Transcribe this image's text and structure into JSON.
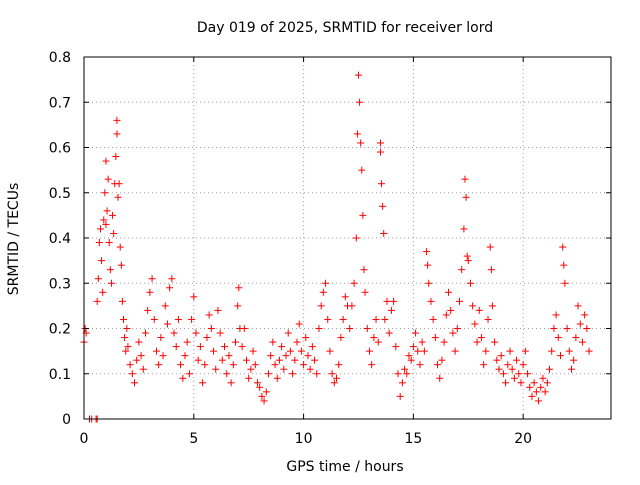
{
  "chart_data": {
    "type": "scatter",
    "title": "Day 019 of 2025, SRMTID for receiver lord",
    "xlabel": "GPS time / hours",
    "ylabel": "SRMTID / TECUs",
    "xlim": [
      0,
      24
    ],
    "ylim": [
      0,
      0.8
    ],
    "xticks": [
      0,
      5,
      10,
      15,
      20
    ],
    "xtick_labels": [
      "0",
      "5",
      "10",
      "15",
      "20"
    ],
    "yticks": [
      0,
      0.1,
      0.2,
      0.3,
      0.4,
      0.5,
      0.6,
      0.7,
      0.8
    ],
    "ytick_labels": [
      "0",
      "0.1",
      "0.2",
      "0.3",
      "0.4",
      "0.5",
      "0.6",
      "0.7",
      "0.8"
    ],
    "grid": true,
    "marker": "+",
    "color": "#ff0000",
    "series": [
      {
        "name": "SRMTID",
        "points": [
          [
            0.0,
            0.17
          ],
          [
            0.05,
            0.2
          ],
          [
            0.1,
            0.19
          ],
          [
            0.25,
            0.0
          ],
          [
            0.35,
            0.0
          ],
          [
            0.55,
            0.0
          ],
          [
            0.6,
            0.0
          ],
          [
            0.6,
            0.26
          ],
          [
            0.65,
            0.31
          ],
          [
            0.7,
            0.39
          ],
          [
            0.75,
            0.42
          ],
          [
            0.8,
            0.35
          ],
          [
            0.85,
            0.28
          ],
          [
            0.9,
            0.44
          ],
          [
            0.95,
            0.5
          ],
          [
            1.0,
            0.57
          ],
          [
            1.0,
            0.43
          ],
          [
            1.05,
            0.46
          ],
          [
            1.1,
            0.53
          ],
          [
            1.15,
            0.39
          ],
          [
            1.2,
            0.33
          ],
          [
            1.25,
            0.3
          ],
          [
            1.3,
            0.45
          ],
          [
            1.35,
            0.41
          ],
          [
            1.4,
            0.52
          ],
          [
            1.45,
            0.58
          ],
          [
            1.5,
            0.66
          ],
          [
            1.5,
            0.63
          ],
          [
            1.55,
            0.49
          ],
          [
            1.6,
            0.52
          ],
          [
            1.65,
            0.38
          ],
          [
            1.7,
            0.34
          ],
          [
            1.75,
            0.26
          ],
          [
            1.8,
            0.22
          ],
          [
            1.85,
            0.18
          ],
          [
            1.9,
            0.15
          ],
          [
            1.95,
            0.2
          ],
          [
            2.0,
            0.16
          ],
          [
            2.1,
            0.12
          ],
          [
            2.2,
            0.1
          ],
          [
            2.3,
            0.08
          ],
          [
            2.4,
            0.13
          ],
          [
            2.5,
            0.17
          ],
          [
            2.6,
            0.14
          ],
          [
            2.7,
            0.11
          ],
          [
            2.8,
            0.19
          ],
          [
            2.9,
            0.24
          ],
          [
            3.0,
            0.28
          ],
          [
            3.1,
            0.31
          ],
          [
            3.2,
            0.22
          ],
          [
            3.3,
            0.15
          ],
          [
            3.4,
            0.12
          ],
          [
            3.5,
            0.18
          ],
          [
            3.6,
            0.14
          ],
          [
            3.7,
            0.25
          ],
          [
            3.8,
            0.21
          ],
          [
            3.9,
            0.29
          ],
          [
            4.0,
            0.31
          ],
          [
            4.1,
            0.19
          ],
          [
            4.2,
            0.16
          ],
          [
            4.3,
            0.22
          ],
          [
            4.4,
            0.12
          ],
          [
            4.5,
            0.09
          ],
          [
            4.6,
            0.14
          ],
          [
            4.7,
            0.17
          ],
          [
            4.8,
            0.1
          ],
          [
            4.9,
            0.22
          ],
          [
            5.0,
            0.27
          ],
          [
            5.1,
            0.19
          ],
          [
            5.2,
            0.13
          ],
          [
            5.3,
            0.16
          ],
          [
            5.4,
            0.08
          ],
          [
            5.5,
            0.12
          ],
          [
            5.6,
            0.18
          ],
          [
            5.7,
            0.23
          ],
          [
            5.8,
            0.2
          ],
          [
            5.9,
            0.15
          ],
          [
            6.0,
            0.11
          ],
          [
            6.1,
            0.24
          ],
          [
            6.2,
            0.19
          ],
          [
            6.3,
            0.13
          ],
          [
            6.4,
            0.16
          ],
          [
            6.5,
            0.1
          ],
          [
            6.6,
            0.14
          ],
          [
            6.7,
            0.08
          ],
          [
            6.8,
            0.12
          ],
          [
            6.9,
            0.17
          ],
          [
            7.0,
            0.25
          ],
          [
            7.05,
            0.29
          ],
          [
            7.1,
            0.2
          ],
          [
            7.2,
            0.16
          ],
          [
            7.3,
            0.2
          ],
          [
            7.4,
            0.13
          ],
          [
            7.5,
            0.09
          ],
          [
            7.6,
            0.11
          ],
          [
            7.7,
            0.15
          ],
          [
            7.8,
            0.12
          ],
          [
            7.9,
            0.08
          ],
          [
            8.0,
            0.07
          ],
          [
            8.1,
            0.05
          ],
          [
            8.2,
            0.04
          ],
          [
            8.3,
            0.06
          ],
          [
            8.4,
            0.1
          ],
          [
            8.5,
            0.14
          ],
          [
            8.6,
            0.17
          ],
          [
            8.7,
            0.12
          ],
          [
            8.8,
            0.09
          ],
          [
            8.9,
            0.13
          ],
          [
            9.0,
            0.16
          ],
          [
            9.1,
            0.11
          ],
          [
            9.2,
            0.14
          ],
          [
            9.3,
            0.19
          ],
          [
            9.4,
            0.15
          ],
          [
            9.5,
            0.1
          ],
          [
            9.6,
            0.13
          ],
          [
            9.7,
            0.17
          ],
          [
            9.8,
            0.21
          ],
          [
            9.9,
            0.15
          ],
          [
            10.0,
            0.12
          ],
          [
            10.1,
            0.18
          ],
          [
            10.2,
            0.14
          ],
          [
            10.3,
            0.11
          ],
          [
            10.4,
            0.16
          ],
          [
            10.5,
            0.13
          ],
          [
            10.6,
            0.1
          ],
          [
            10.7,
            0.2
          ],
          [
            10.8,
            0.25
          ],
          [
            10.9,
            0.28
          ],
          [
            11.0,
            0.3
          ],
          [
            11.1,
            0.22
          ],
          [
            11.2,
            0.15
          ],
          [
            11.3,
            0.1
          ],
          [
            11.4,
            0.08
          ],
          [
            11.5,
            0.09
          ],
          [
            11.6,
            0.12
          ],
          [
            11.7,
            0.18
          ],
          [
            11.8,
            0.22
          ],
          [
            11.9,
            0.27
          ],
          [
            12.0,
            0.25
          ],
          [
            12.1,
            0.2
          ],
          [
            12.2,
            0.25
          ],
          [
            12.3,
            0.3
          ],
          [
            12.4,
            0.4
          ],
          [
            12.45,
            0.63
          ],
          [
            12.5,
            0.76
          ],
          [
            12.55,
            0.7
          ],
          [
            12.6,
            0.61
          ],
          [
            12.65,
            0.55
          ],
          [
            12.7,
            0.45
          ],
          [
            12.75,
            0.33
          ],
          [
            12.8,
            0.28
          ],
          [
            12.9,
            0.2
          ],
          [
            13.0,
            0.15
          ],
          [
            13.1,
            0.12
          ],
          [
            13.2,
            0.18
          ],
          [
            13.3,
            0.22
          ],
          [
            13.4,
            0.17
          ],
          [
            13.5,
            0.61
          ],
          [
            13.5,
            0.59
          ],
          [
            13.55,
            0.52
          ],
          [
            13.6,
            0.47
          ],
          [
            13.65,
            0.41
          ],
          [
            13.7,
            0.22
          ],
          [
            13.8,
            0.26
          ],
          [
            13.9,
            0.19
          ],
          [
            14.0,
            0.24
          ],
          [
            14.1,
            0.26
          ],
          [
            14.2,
            0.16
          ],
          [
            14.3,
            0.1
          ],
          [
            14.4,
            0.05
          ],
          [
            14.5,
            0.08
          ],
          [
            14.6,
            0.11
          ],
          [
            14.7,
            0.1
          ],
          [
            14.8,
            0.14
          ],
          [
            14.9,
            0.13
          ],
          [
            15.0,
            0.16
          ],
          [
            15.1,
            0.19
          ],
          [
            15.2,
            0.15
          ],
          [
            15.3,
            0.12
          ],
          [
            15.4,
            0.17
          ],
          [
            15.5,
            0.15
          ],
          [
            15.6,
            0.37
          ],
          [
            15.65,
            0.34
          ],
          [
            15.7,
            0.3
          ],
          [
            15.8,
            0.26
          ],
          [
            15.9,
            0.22
          ],
          [
            16.0,
            0.18
          ],
          [
            16.1,
            0.12
          ],
          [
            16.2,
            0.09
          ],
          [
            16.3,
            0.13
          ],
          [
            16.4,
            0.17
          ],
          [
            16.5,
            0.23
          ],
          [
            16.6,
            0.28
          ],
          [
            16.7,
            0.24
          ],
          [
            16.8,
            0.19
          ],
          [
            16.9,
            0.15
          ],
          [
            17.0,
            0.2
          ],
          [
            17.1,
            0.26
          ],
          [
            17.2,
            0.33
          ],
          [
            17.3,
            0.42
          ],
          [
            17.35,
            0.53
          ],
          [
            17.4,
            0.49
          ],
          [
            17.45,
            0.36
          ],
          [
            17.5,
            0.35
          ],
          [
            17.6,
            0.3
          ],
          [
            17.7,
            0.25
          ],
          [
            17.8,
            0.21
          ],
          [
            17.9,
            0.17
          ],
          [
            18.0,
            0.24
          ],
          [
            18.1,
            0.18
          ],
          [
            18.2,
            0.12
          ],
          [
            18.3,
            0.15
          ],
          [
            18.4,
            0.22
          ],
          [
            18.5,
            0.38
          ],
          [
            18.55,
            0.33
          ],
          [
            18.6,
            0.25
          ],
          [
            18.7,
            0.17
          ],
          [
            18.8,
            0.13
          ],
          [
            18.9,
            0.11
          ],
          [
            19.0,
            0.14
          ],
          [
            19.1,
            0.1
          ],
          [
            19.2,
            0.08
          ],
          [
            19.3,
            0.12
          ],
          [
            19.4,
            0.15
          ],
          [
            19.5,
            0.11
          ],
          [
            19.6,
            0.09
          ],
          [
            19.7,
            0.13
          ],
          [
            19.8,
            0.1
          ],
          [
            19.9,
            0.08
          ],
          [
            20.0,
            0.12
          ],
          [
            20.1,
            0.15
          ],
          [
            20.2,
            0.1
          ],
          [
            20.3,
            0.07
          ],
          [
            20.4,
            0.05
          ],
          [
            20.5,
            0.08
          ],
          [
            20.6,
            0.06
          ],
          [
            20.7,
            0.04
          ],
          [
            20.8,
            0.07
          ],
          [
            20.9,
            0.09
          ],
          [
            21.0,
            0.06
          ],
          [
            21.1,
            0.08
          ],
          [
            21.2,
            0.11
          ],
          [
            21.3,
            0.15
          ],
          [
            21.4,
            0.2
          ],
          [
            21.5,
            0.23
          ],
          [
            21.6,
            0.18
          ],
          [
            21.7,
            0.14
          ],
          [
            21.8,
            0.38
          ],
          [
            21.85,
            0.34
          ],
          [
            21.9,
            0.3
          ],
          [
            22.0,
            0.2
          ],
          [
            22.1,
            0.15
          ],
          [
            22.2,
            0.11
          ],
          [
            22.3,
            0.13
          ],
          [
            22.4,
            0.18
          ],
          [
            22.5,
            0.25
          ],
          [
            22.6,
            0.21
          ],
          [
            22.7,
            0.17
          ],
          [
            22.8,
            0.23
          ],
          [
            22.9,
            0.2
          ],
          [
            23.0,
            0.15
          ]
        ]
      }
    ]
  }
}
